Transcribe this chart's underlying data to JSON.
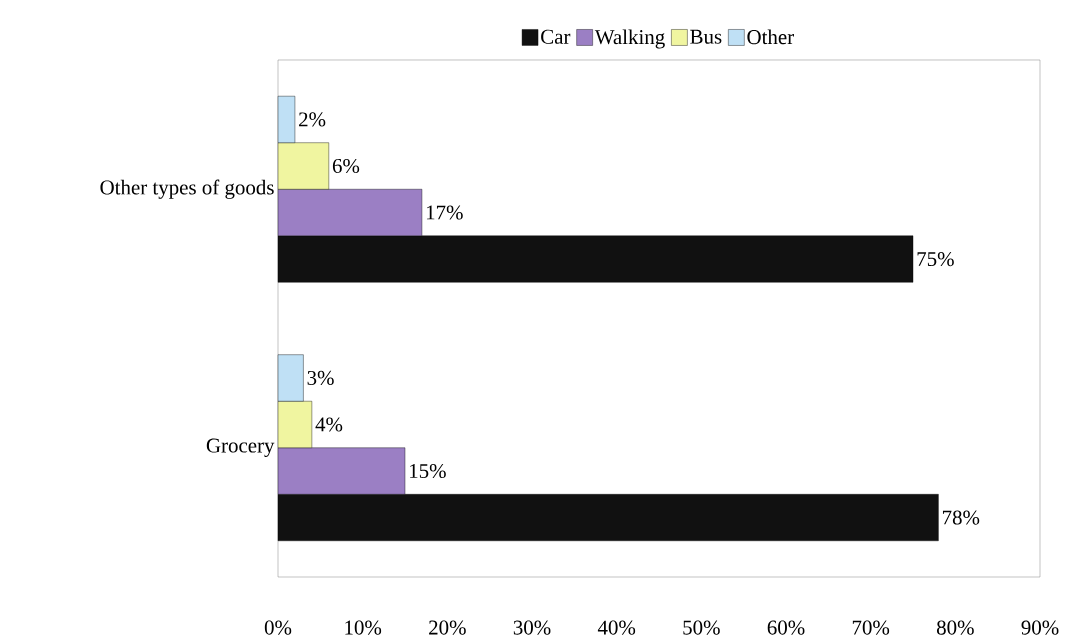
{
  "chart_data": {
    "type": "bar",
    "orientation": "horizontal",
    "categories": [
      "Other types of goods",
      "Grocery"
    ],
    "series": [
      {
        "name": "Car",
        "color": "#111111",
        "values": [
          75,
          78
        ],
        "value_labels": [
          "75%",
          "78%"
        ]
      },
      {
        "name": "Walking",
        "color": "#9b7fc4",
        "values": [
          17,
          15
        ],
        "value_labels": [
          "17%",
          "15%"
        ]
      },
      {
        "name": "Bus",
        "color": "#f0f5a0",
        "values": [
          6,
          4
        ],
        "value_labels": [
          "6%",
          "4%"
        ]
      },
      {
        "name": "Other",
        "color": "#bfe0f5",
        "values": [
          2,
          3
        ],
        "value_labels": [
          "2%",
          "3%"
        ]
      }
    ],
    "xlim": [
      0,
      90
    ],
    "xticks": [
      {
        "value": 0,
        "label": "0%"
      },
      {
        "value": 10,
        "label": "10%"
      },
      {
        "value": 20,
        "label": "20%"
      },
      {
        "value": 30,
        "label": "30%"
      },
      {
        "value": 40,
        "label": "40%"
      },
      {
        "value": 50,
        "label": "50%"
      },
      {
        "value": 60,
        "label": "60%"
      },
      {
        "value": 70,
        "label": "70%"
      },
      {
        "value": 80,
        "label": "80%"
      },
      {
        "value": 90,
        "label": "90%"
      }
    ],
    "legend": "top"
  }
}
